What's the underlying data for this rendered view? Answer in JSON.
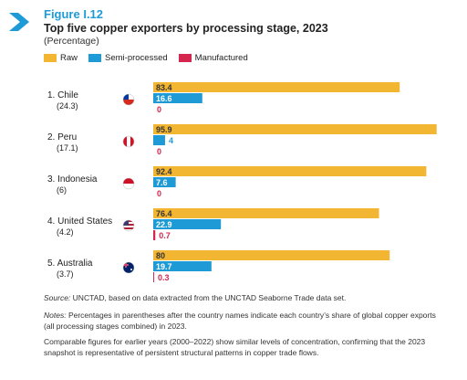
{
  "figure_label": "Figure I.12",
  "chart_data": {
    "type": "bar",
    "orientation": "horizontal",
    "title": "Top five copper exporters by processing stage, 2023",
    "subtitle": "(Percentage)",
    "xlim": [
      0,
      100
    ],
    "legend_position": "top-left",
    "legend": [
      "Raw",
      "Semi-processed",
      "Manufactured"
    ],
    "categories": [
      {
        "name": "1. Chile",
        "share": "(24.3)",
        "flag": "chile-flag"
      },
      {
        "name": "2. Peru",
        "share": "(17.1)",
        "flag": "peru-flag"
      },
      {
        "name": "3. Indonesia",
        "share": "(6)",
        "flag": "indonesia-flag"
      },
      {
        "name": "4. United States",
        "share": "(4.2)",
        "flag": "united-states-flag"
      },
      {
        "name": "5. Australia",
        "share": "(3.7)",
        "flag": "australia-flag"
      }
    ],
    "series": [
      {
        "name": "Raw",
        "color": "#f3b632",
        "values": [
          83.4,
          95.9,
          92.4,
          76.4,
          80
        ],
        "labels": [
          "83.4",
          "95.9",
          "92.4",
          "76.4",
          "80"
        ]
      },
      {
        "name": "Semi-processed",
        "color": "#1e9bd7",
        "values": [
          16.6,
          4,
          7.6,
          22.9,
          19.7
        ],
        "labels": [
          "16.6",
          "4",
          "7.6",
          "22.9",
          "19.7"
        ]
      },
      {
        "name": "Manufactured",
        "color": "#d4264f",
        "values": [
          0,
          0,
          0,
          0.7,
          0.3
        ],
        "labels": [
          "0",
          "0",
          "0",
          "0.7",
          "0.3"
        ]
      }
    ]
  },
  "notes": {
    "source_label": "Source:",
    "source_text": "UNCTAD, based on data extracted from the UNCTAD Seaborne Trade data set.",
    "notes_label": "Notes:",
    "notes_text": "Percentages in parentheses after the country names indicate each country’s share of global copper exports (all processing stages combined) in 2023.",
    "comparable_text": "Comparable figures for earlier years (2000–2022) show similar levels of concentration, confirming that the 2023 snapshot is representative of persistent structural patterns in copper trade flows."
  }
}
